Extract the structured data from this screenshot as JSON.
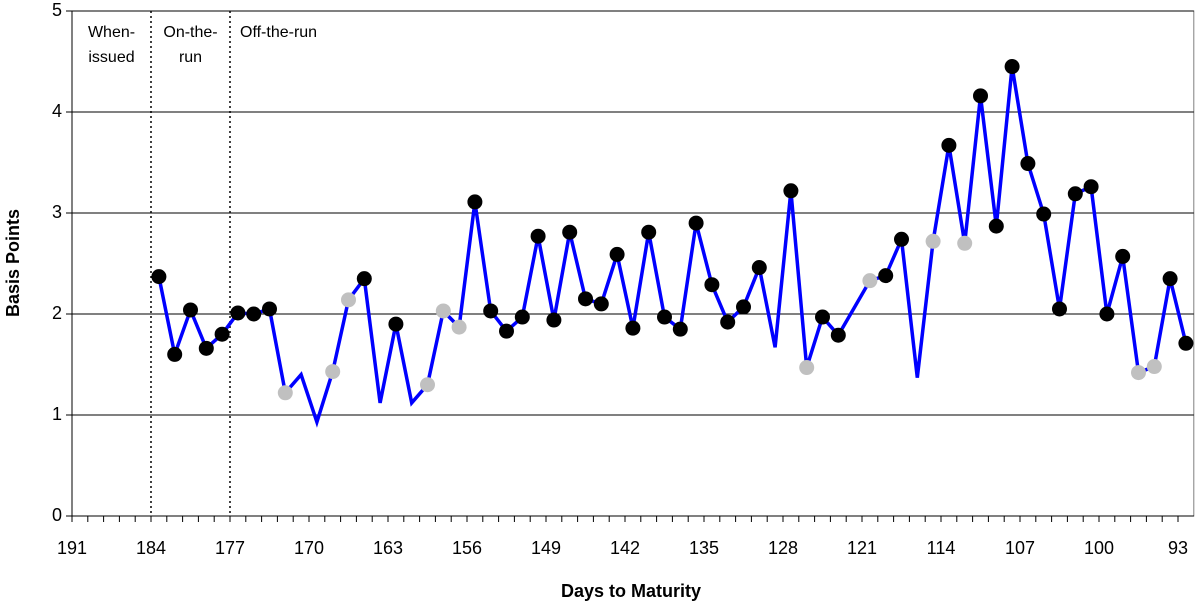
{
  "chart_data": {
    "type": "line",
    "xlabel": "Days to Maturity",
    "ylabel": "Basis Points",
    "categories": [
      "191",
      null,
      null,
      null,
      null,
      "184",
      null,
      null,
      null,
      null,
      "177",
      null,
      null,
      null,
      null,
      "170",
      null,
      null,
      null,
      null,
      "163",
      null,
      null,
      null,
      null,
      "156",
      null,
      null,
      null,
      null,
      "149",
      null,
      null,
      null,
      null,
      "142",
      null,
      null,
      null,
      null,
      "135",
      null,
      null,
      null,
      null,
      "128",
      null,
      null,
      null,
      null,
      "121",
      null,
      null,
      null,
      null,
      "114",
      null,
      null,
      null,
      null,
      "107",
      null,
      null,
      null,
      null,
      "100",
      null,
      null,
      null,
      null,
      "93"
    ],
    "values": [
      null,
      null,
      null,
      null,
      null,
      2.37,
      1.6,
      2.04,
      1.66,
      1.8,
      2.01,
      2.0,
      2.05,
      1.22,
      1.4,
      0.93,
      1.43,
      2.14,
      2.35,
      1.12,
      1.9,
      1.12,
      1.3,
      2.03,
      1.87,
      3.11,
      2.03,
      1.83,
      1.97,
      2.77,
      1.94,
      2.81,
      2.15,
      2.1,
      2.59,
      1.86,
      2.81,
      1.97,
      1.85,
      2.9,
      2.29,
      1.92,
      2.07,
      2.46,
      1.67,
      3.22,
      1.47,
      1.97,
      1.79,
      2.06,
      2.33,
      2.38,
      2.74,
      1.37,
      2.72,
      3.67,
      2.7,
      4.16,
      2.87,
      4.45,
      3.49,
      2.99,
      2.05,
      3.19,
      3.26,
      2.0,
      2.57,
      1.42,
      1.48,
      2.35,
      1.71
    ],
    "color": "#0000ff",
    "marker_colors": [
      null,
      null,
      null,
      null,
      null,
      "#000000",
      "#000000",
      "#000000",
      "#000000",
      "#000000",
      "#000000",
      "#000000",
      "#000000",
      "#c0c0c0",
      null,
      null,
      "#c0c0c0",
      "#c0c0c0",
      "#000000",
      null,
      "#000000",
      null,
      "#c0c0c0",
      "#c0c0c0",
      "#c0c0c0",
      "#000000",
      "#000000",
      "#000000",
      "#000000",
      "#000000",
      "#000000",
      "#000000",
      "#000000",
      "#000000",
      "#000000",
      "#000000",
      "#000000",
      "#000000",
      "#000000",
      "#000000",
      "#000000",
      "#000000",
      "#000000",
      "#000000",
      null,
      "#000000",
      "#c0c0c0",
      "#000000",
      "#000000",
      null,
      "#c0c0c0",
      "#000000",
      "#000000",
      null,
      "#c0c0c0",
      "#000000",
      "#c0c0c0",
      "#000000",
      "#000000",
      "#000000",
      "#000000",
      "#000000",
      "#000000",
      "#000000",
      "#000000",
      "#000000",
      "#000000",
      "#c0c0c0",
      "#c0c0c0",
      "#000000",
      "#000000"
    ],
    "ylim": [
      0,
      5
    ],
    "yticks": [
      0,
      1,
      2,
      3,
      4,
      5
    ],
    "grid": true,
    "annotations": [
      {
        "lines": [
          "When-",
          "issued"
        ]
      },
      {
        "lines": [
          "On-the-",
          "run"
        ]
      },
      {
        "lines": [
          "Off-the-run"
        ]
      }
    ]
  }
}
